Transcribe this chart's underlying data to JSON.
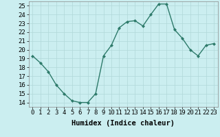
{
  "x": [
    0,
    1,
    2,
    3,
    4,
    5,
    6,
    7,
    8,
    9,
    10,
    11,
    12,
    13,
    14,
    15,
    16,
    17,
    18,
    19,
    20,
    21,
    22,
    23
  ],
  "y": [
    19.3,
    18.5,
    17.5,
    16.0,
    15.0,
    14.2,
    14.0,
    14.0,
    15.0,
    19.3,
    20.5,
    22.5,
    23.2,
    23.3,
    22.7,
    24.0,
    25.2,
    25.2,
    22.3,
    21.3,
    20.0,
    19.3,
    20.5,
    20.7
  ],
  "line_color": "#2d7a6a",
  "marker": "D",
  "marker_size": 2.0,
  "bg_color": "#cbeef0",
  "grid_color": "#b0d8d8",
  "xlabel": "Humidex (Indice chaleur)",
  "xlim": [
    -0.5,
    23.5
  ],
  "ylim": [
    13.5,
    25.5
  ],
  "yticks": [
    14,
    15,
    16,
    17,
    18,
    19,
    20,
    21,
    22,
    23,
    24,
    25
  ],
  "xticks": [
    0,
    1,
    2,
    3,
    4,
    5,
    6,
    7,
    8,
    9,
    10,
    11,
    12,
    13,
    14,
    15,
    16,
    17,
    18,
    19,
    20,
    21,
    22,
    23
  ],
  "tick_fontsize": 6.5,
  "xlabel_fontsize": 7.5,
  "line_width": 1.0
}
